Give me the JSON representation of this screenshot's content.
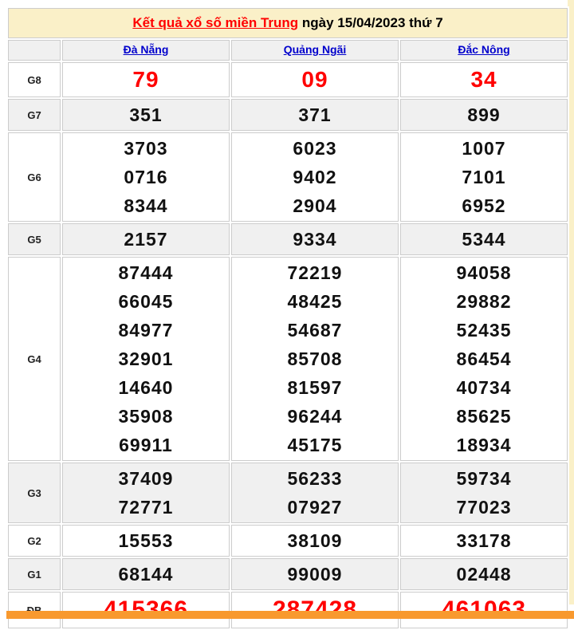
{
  "page": {
    "title_link": "Kết quả xổ số miền Trung",
    "title_rest": " ngày 15/04/2023 thứ 7"
  },
  "table": {
    "columns": [
      {
        "label": "Đà Nẵng"
      },
      {
        "label": "Quảng Ngãi"
      },
      {
        "label": "Đắc Nông"
      }
    ],
    "prizes": [
      {
        "label": "G8",
        "values": [
          [
            "79"
          ],
          [
            "09"
          ],
          [
            "34"
          ]
        ]
      },
      {
        "label": "G7",
        "values": [
          [
            "351"
          ],
          [
            "371"
          ],
          [
            "899"
          ]
        ]
      },
      {
        "label": "G6",
        "values": [
          [
            "3703",
            "0716",
            "8344"
          ],
          [
            "6023",
            "9402",
            "2904"
          ],
          [
            "1007",
            "7101",
            "6952"
          ]
        ]
      },
      {
        "label": "G5",
        "values": [
          [
            "2157"
          ],
          [
            "9334"
          ],
          [
            "5344"
          ]
        ]
      },
      {
        "label": "G4",
        "values": [
          [
            "87444",
            "66045",
            "84977",
            "32901",
            "14640",
            "35908",
            "69911"
          ],
          [
            "72219",
            "48425",
            "54687",
            "85708",
            "81597",
            "96244",
            "45175"
          ],
          [
            "94058",
            "29882",
            "52435",
            "86454",
            "40734",
            "85625",
            "18934"
          ]
        ]
      },
      {
        "label": "G3",
        "values": [
          [
            "37409",
            "72771"
          ],
          [
            "56233",
            "07927"
          ],
          [
            "59734",
            "77023"
          ]
        ]
      },
      {
        "label": "G2",
        "values": [
          [
            "15553"
          ],
          [
            "38109"
          ],
          [
            "33178"
          ]
        ]
      },
      {
        "label": "G1",
        "values": [
          [
            "68144"
          ],
          [
            "99009"
          ],
          [
            "02448"
          ]
        ]
      },
      {
        "label": "ĐB",
        "values": [
          [
            "415366"
          ],
          [
            "287428"
          ],
          [
            "461063"
          ]
        ]
      }
    ]
  },
  "colors": {
    "title_bg": "#FAF0C8",
    "alt_row_bg": "#F0F0F0",
    "cell_border": "#CCCCCC",
    "highlight_red": "#FF0000",
    "link_blue": "#0000CC",
    "orange_bar": "#F8992E"
  }
}
